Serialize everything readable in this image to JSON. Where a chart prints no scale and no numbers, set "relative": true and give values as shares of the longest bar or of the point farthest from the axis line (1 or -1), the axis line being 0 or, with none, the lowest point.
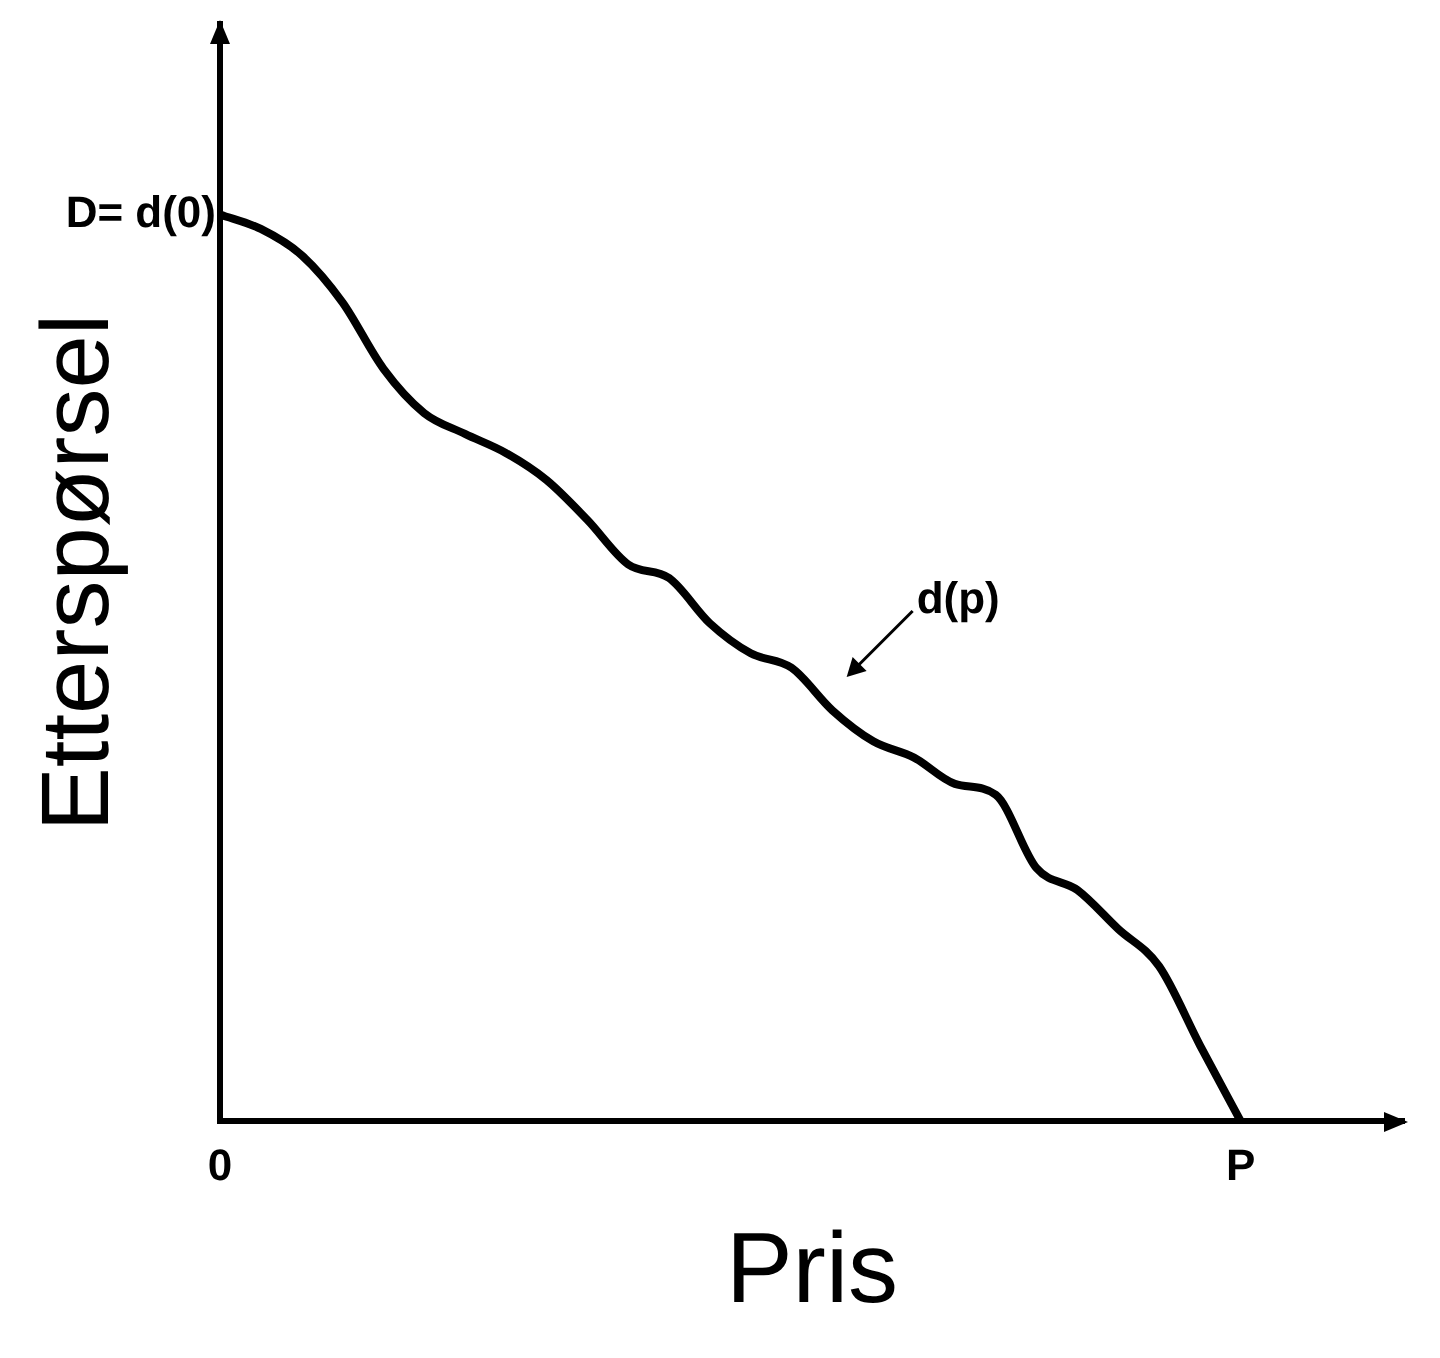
{
  "chart_data": {
    "type": "line",
    "relative": true,
    "xlabel": "Pris",
    "ylabel": "Etterspørsel",
    "grid": false,
    "legend": false,
    "categories": [
      "0",
      null,
      null,
      null,
      null,
      null,
      null,
      null,
      null,
      null,
      null,
      null,
      null,
      null,
      null,
      null,
      null,
      null,
      null,
      null,
      null,
      null,
      null,
      null,
      null,
      "P",
      null,
      null,
      null,
      null
    ],
    "series": [
      {
        "color": "#000000",
        "values": [
          1,
          0.984,
          0.955,
          0.903,
          0.83,
          0.781,
          0.758,
          0.737,
          0.707,
          0.663,
          0.614,
          0.599,
          0.549,
          0.516,
          0.5,
          0.453,
          0.419,
          0.401,
          0.372,
          0.36,
          0.279,
          0.255,
          0.212,
          0.171,
          0.084,
          0,
          null,
          null,
          null,
          null
        ]
      }
    ],
    "annotations": [
      {
        "text": "D= d(0)",
        "x": "0",
        "y": 1
      },
      "d(p)"
    ]
  }
}
